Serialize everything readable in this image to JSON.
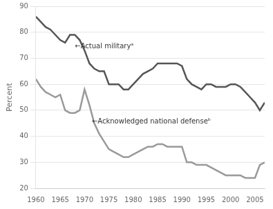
{
  "chart_data": {
    "type": "line",
    "x": [
      1960,
      1961,
      1962,
      1963,
      1964,
      1965,
      1966,
      1967,
      1968,
      1969,
      1970,
      1971,
      1972,
      1973,
      1974,
      1975,
      1976,
      1977,
      1978,
      1979,
      1980,
      1981,
      1982,
      1983,
      1984,
      1985,
      1986,
      1987,
      1988,
      1989,
      1990,
      1991,
      1992,
      1993,
      1994,
      1995,
      1996,
      1997,
      1998,
      1999,
      2000,
      2001,
      2002,
      2003,
      2004,
      2005,
      2006,
      2007
    ],
    "series": [
      {
        "color": "#555555",
        "values": [
          86,
          84,
          82,
          81,
          79,
          77,
          76,
          79,
          79,
          77,
          73,
          68,
          66,
          65,
          65,
          60,
          60,
          60,
          58,
          58,
          60,
          62,
          64,
          65,
          66,
          68,
          68,
          68,
          68,
          68,
          67,
          62,
          60,
          59,
          58,
          60,
          60,
          59,
          59,
          59,
          60,
          60,
          59,
          57,
          55,
          53,
          50,
          53
        ]
      },
      {
        "color": "#999999",
        "values": [
          62,
          59,
          57,
          56,
          55,
          56,
          50,
          49,
          49,
          50,
          58,
          52,
          45,
          41,
          38,
          35,
          34,
          33,
          32,
          32,
          33,
          34,
          35,
          36,
          36,
          37,
          37,
          36,
          36,
          36,
          36,
          30,
          30,
          29,
          29,
          29,
          28,
          27,
          26,
          25,
          25,
          25,
          25,
          24,
          24,
          24,
          29,
          30
        ]
      }
    ],
    "xlim": [
      1960,
      2007
    ],
    "xticks": [
      1960,
      1965,
      1970,
      1975,
      1980,
      1985,
      1990,
      1995,
      2000,
      2005
    ],
    "ylim": [
      20,
      90
    ],
    "yticks": [
      20,
      30,
      40,
      50,
      60,
      70,
      80,
      90
    ],
    "y_label": "Percent",
    "grid": "y",
    "annotations": [
      {
        "text": "←Actual militaryᵃ",
        "x": 1968.0,
        "y": 74.5
      },
      {
        "text": "←Acknowledged national defenseᵇ",
        "x": 1971.5,
        "y": 45.5
      }
    ]
  }
}
